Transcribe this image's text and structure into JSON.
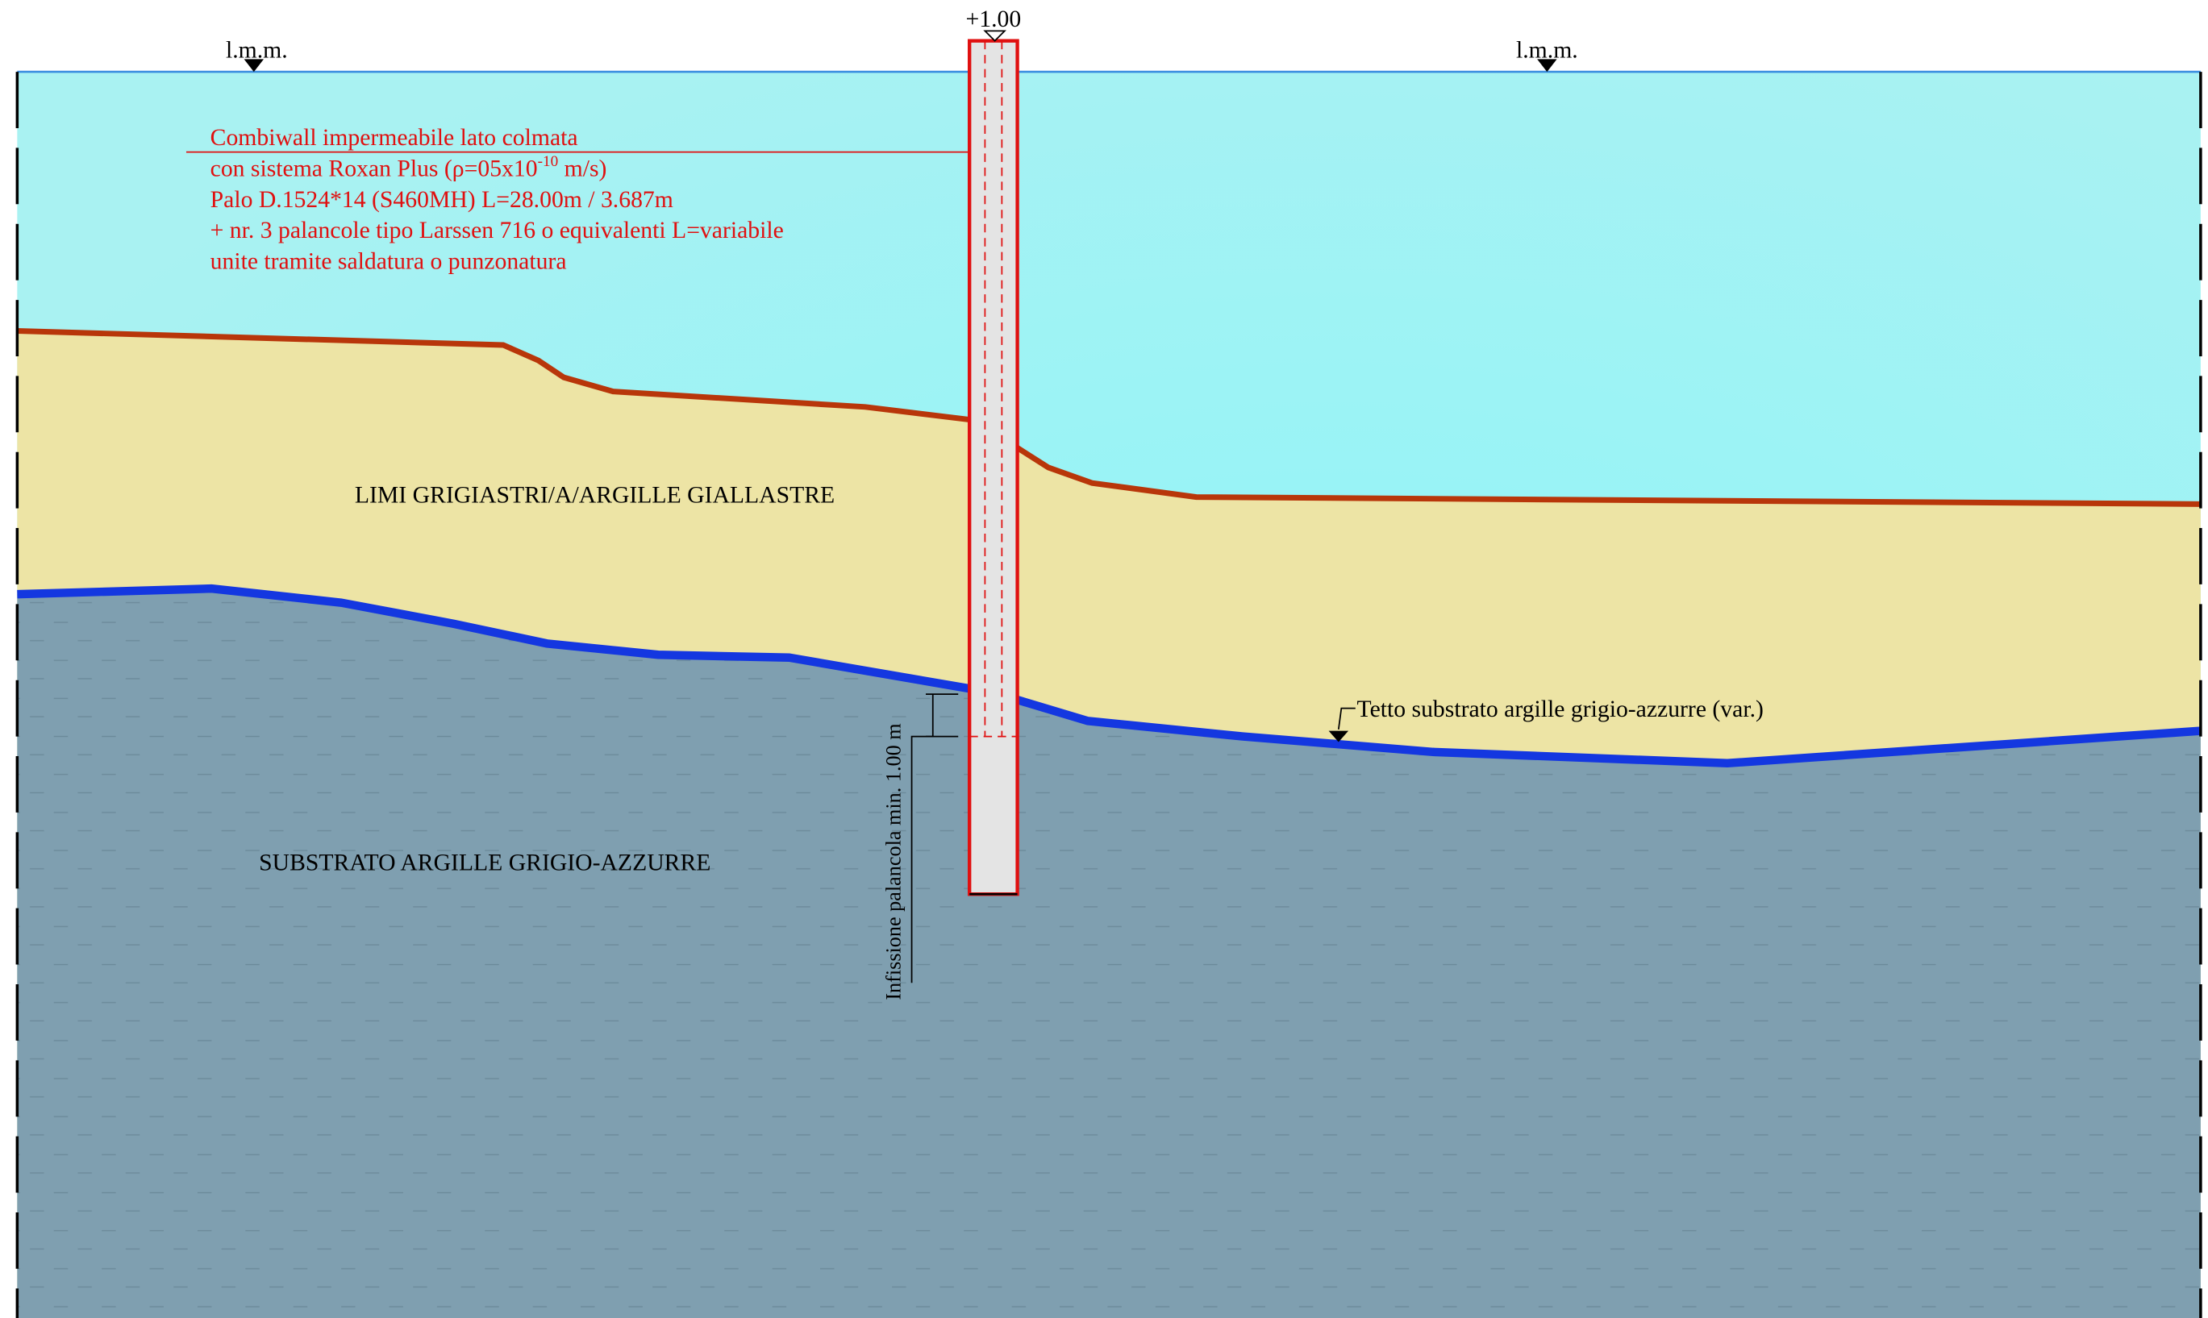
{
  "levels": {
    "left": "l.m.m.",
    "right": "l.m.m.",
    "top": "+1.00"
  },
  "note": {
    "line1": "Combiwall impermeabile lato colmata",
    "line2": {
      "before": "con sistema Roxan Plus (ρ=05x10",
      "sup": "-10",
      "after": " m/s)"
    },
    "line3": "Palo D.1524*14 (S460MH) L=28.00m / 3.687m",
    "line4": "+ nr. 3 palancole tipo Larssen 716 o equivalenti L=variabile",
    "line5": "unite tramite saldatura o punzonatura"
  },
  "layers": {
    "upper": "LIMI GRIGIASTRI/A/ARGILLE GIALLASTRE",
    "lower": "SUBSTRATO ARGILLE GRIGIO-AZZURRE"
  },
  "annotations": {
    "substrate_top": "Tetto substrato argille grigio-azzurre (var.)",
    "embedment": "Infissione palancola min. 1.00 m"
  }
}
